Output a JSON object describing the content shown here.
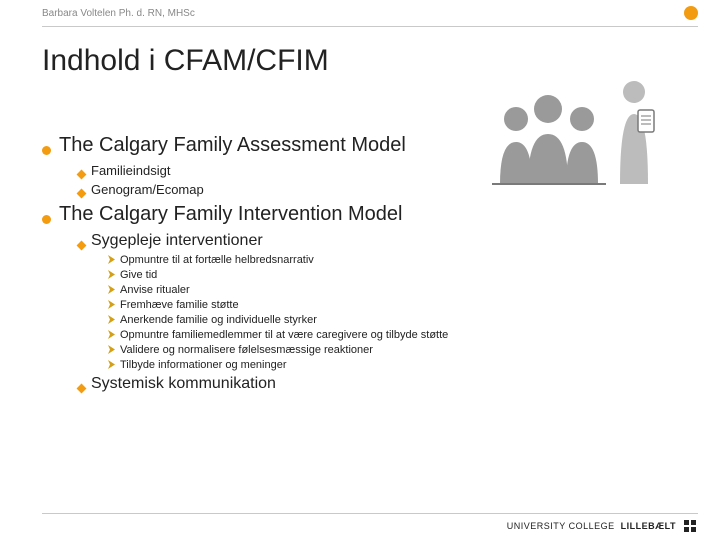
{
  "colors": {
    "accent_orange": "#f39c12",
    "accent_gold": "#d4a017",
    "text": "#222222",
    "muted": "#888888",
    "rule": "#c9c9c9",
    "illus_gray": "#9a9a9a",
    "illus_gray_light": "#bcbcbc"
  },
  "header": {
    "author": "Barbara Voltelen Ph. d. RN, MHSc"
  },
  "title": "Indhold i CFAM/CFIM",
  "sections": [
    {
      "label": "The Calgary Family Assessment Model",
      "items": [
        {
          "label": "Familieindsigt",
          "style": "small"
        },
        {
          "label": "Genogram/Ecomap",
          "style": "small"
        }
      ]
    },
    {
      "label": "The Calgary Family Intervention Model",
      "items": [
        {
          "label": "Sygepleje interventioner",
          "style": "large",
          "subitems": [
            "Opmuntre til at fortælle helbredsnarrativ",
            "Give tid",
            "Anvise ritualer",
            "Fremhæve familie støtte",
            "Anerkende familie og individuelle styrker",
            "Opmuntre familiemedlemmer til at være caregivere og tilbyde støtte",
            "Validere og normalisere følelsesmæssige reaktioner",
            "Tilbyde informationer og meninger"
          ]
        },
        {
          "label": "Systemisk kommunikation",
          "style": "large"
        }
      ]
    }
  ],
  "footer": {
    "brand_light": "UNIVERSITY COLLEGE ",
    "brand_bold": "LILLEBÆLT"
  }
}
